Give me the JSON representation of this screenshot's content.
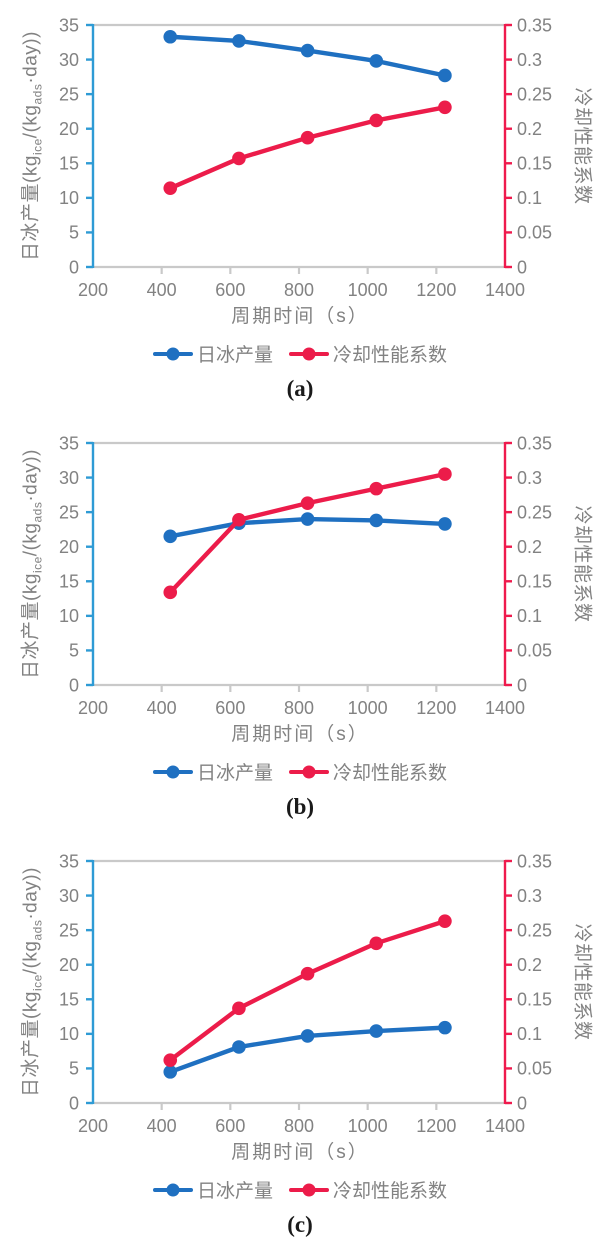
{
  "colors": {
    "series_blue": "#1f70c1",
    "series_red": "#ec1c4a",
    "axis_blue": "#2e9bd5",
    "axis_red": "#ef1a4d",
    "border_gray": "#c9c9c9",
    "text_gray": "#828282",
    "caption_black": "#1a1a1a"
  },
  "figure": {
    "x_axis": {
      "title": "周期时间（s）",
      "min": 200,
      "max": 1400,
      "ticks": [
        200,
        400,
        600,
        800,
        1000,
        1200,
        1400
      ]
    },
    "left_axis": {
      "title_parts": {
        "p1": "日冰产量(kg",
        "s1": "ice",
        "p2": "/(kg",
        "s2": "ads",
        "p3": "·day))"
      },
      "min": 0,
      "max": 35,
      "ticks": [
        0,
        5,
        10,
        15,
        20,
        25,
        30,
        35
      ]
    },
    "right_axis": {
      "title": "冷却性能系数",
      "min": 0,
      "max": 0.35,
      "tick_labels": [
        "0",
        "0.05",
        "0.1",
        "0.15",
        "0.2",
        "0.25",
        "0.3",
        "0.35"
      ]
    },
    "legend": [
      {
        "label": "日冰产量",
        "color_key": "series_blue"
      },
      {
        "label": "冷却性能系数",
        "color_key": "series_red"
      }
    ]
  },
  "chart_data": [
    {
      "type": "line",
      "caption": "(a)",
      "xlabel": "周期时间（s）",
      "ylabel_left": "日冰产量(kg_ice/(kg_ads·day))",
      "ylabel_right": "冷却性能系数",
      "xlim": [
        200,
        1400
      ],
      "ylim_left": [
        0,
        35
      ],
      "ylim_right": [
        0,
        0.35
      ],
      "x": [
        425,
        625,
        825,
        1025,
        1225
      ],
      "series": [
        {
          "id": "ice",
          "name": "日冰产量",
          "axis": "left",
          "color_key": "series_blue",
          "values": [
            33.3,
            32.7,
            31.3,
            29.8,
            27.7
          ]
        },
        {
          "id": "cop",
          "name": "冷却性能系数",
          "axis": "right",
          "color_key": "series_red",
          "values": [
            0.114,
            0.157,
            0.187,
            0.212,
            0.231
          ]
        }
      ]
    },
    {
      "type": "line",
      "caption": "(b)",
      "xlabel": "周期时间（s）",
      "ylabel_left": "日冰产量(kg_ice/(kg_ads·day))",
      "ylabel_right": "冷却性能系数",
      "xlim": [
        200,
        1400
      ],
      "ylim_left": [
        0,
        35
      ],
      "ylim_right": [
        0,
        0.35
      ],
      "x": [
        425,
        625,
        825,
        1025,
        1225
      ],
      "series": [
        {
          "id": "ice",
          "name": "日冰产量",
          "axis": "left",
          "color_key": "series_blue",
          "values": [
            21.5,
            23.4,
            24.0,
            23.8,
            23.3
          ]
        },
        {
          "id": "cop",
          "name": "冷却性能系数",
          "axis": "right",
          "color_key": "series_red",
          "values": [
            0.134,
            0.239,
            0.263,
            0.284,
            0.305
          ]
        }
      ]
    },
    {
      "type": "line",
      "caption": "(c)",
      "xlabel": "周期时间（s）",
      "ylabel_left": "日冰产量(kg_ice/(kg_ads·day))",
      "ylabel_right": "冷却性能系数",
      "xlim": [
        200,
        1400
      ],
      "ylim_left": [
        0,
        35
      ],
      "ylim_right": [
        0,
        0.35
      ],
      "x": [
        425,
        625,
        825,
        1025,
        1225
      ],
      "series": [
        {
          "id": "ice",
          "name": "日冰产量",
          "axis": "left",
          "color_key": "series_blue",
          "values": [
            4.5,
            8.1,
            9.7,
            10.4,
            10.9
          ]
        },
        {
          "id": "cop",
          "name": "冷却性能系数",
          "axis": "right",
          "color_key": "series_red",
          "values": [
            0.062,
            0.137,
            0.187,
            0.231,
            0.263
          ]
        }
      ]
    }
  ]
}
